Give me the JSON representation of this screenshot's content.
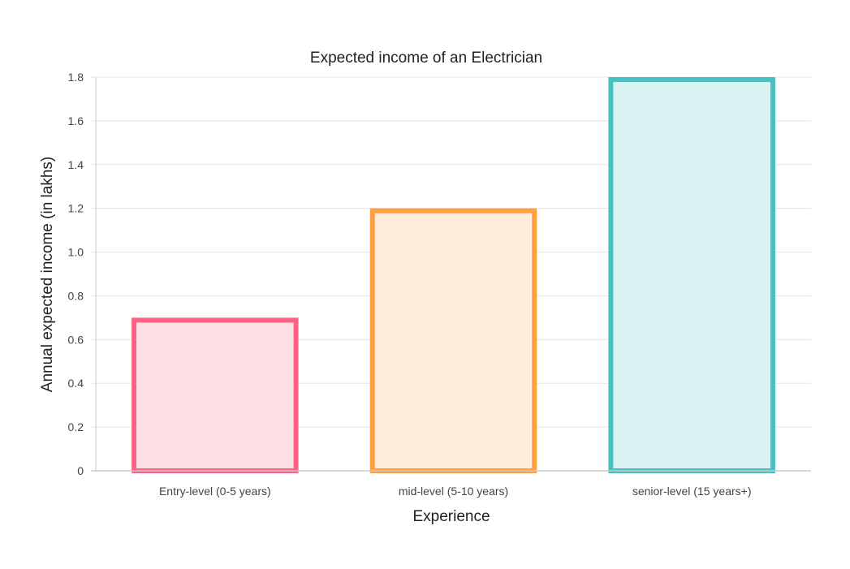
{
  "chart_data": {
    "type": "bar",
    "title": "Expected income of an Electrician",
    "xlabel": "Experience",
    "ylabel": "Annual expected income (in lakhs)",
    "categories": [
      "Entry-level (0-5 years)",
      "mid-level (5-10 years)",
      "senior-level (15 years+)"
    ],
    "values": [
      0.7,
      1.2,
      1.8
    ],
    "ylim": [
      0,
      1.8
    ],
    "yticks": [
      "0",
      "0.2",
      "0.4",
      "0.6",
      "0.8",
      "1.0",
      "1.2",
      "1.4",
      "1.6",
      "1.8"
    ],
    "grid": true,
    "legend": "none",
    "colors": {
      "borders": [
        "#ff6384",
        "#ff9f40",
        "#4bc0c0"
      ],
      "fills": [
        "#ffdfe6",
        "#ffecd9",
        "#dbf2f2"
      ],
      "grid": "#e5e5e5",
      "axis": "#cccccc"
    }
  }
}
